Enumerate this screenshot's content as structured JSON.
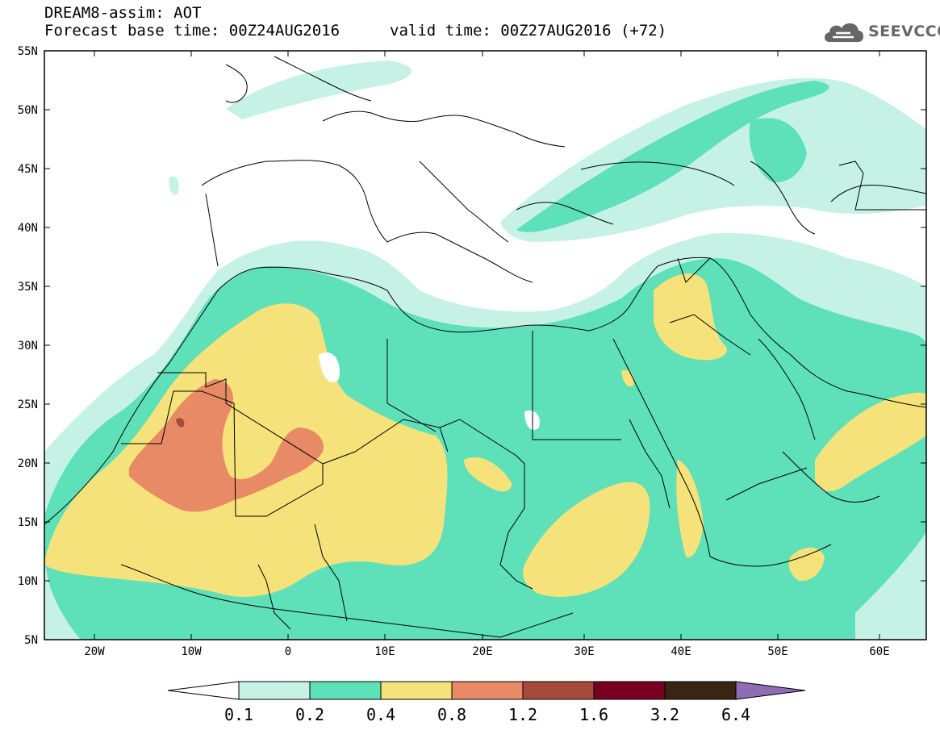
{
  "title_line1": "DREAM8-assim: AOT",
  "title_line2": "Forecast base time: 00Z24AUG2016",
  "valid_time": "valid time: 00Z27AUG2016 (+72)",
  "logo_text": "SEEVCCC",
  "logo_icon": "cloud-icon",
  "lat_labels": [
    "55N",
    "50N",
    "45N",
    "40N",
    "35N",
    "30N",
    "25N",
    "20N",
    "15N",
    "10N",
    "5N"
  ],
  "lon_labels": [
    "20W",
    "10W",
    "0",
    "10E",
    "20E",
    "30E",
    "40E",
    "50E",
    "60E"
  ],
  "colorbar": {
    "labels": [
      "0.1",
      "0.2",
      "0.4",
      "0.8",
      "1.2",
      "1.6",
      "3.2",
      "6.4"
    ],
    "colors": [
      "#ffffff",
      "#c6f2e6",
      "#5ee0b8",
      "#f5e27a",
      "#e88a66",
      "#a64a3c",
      "#780020",
      "#3a2412",
      "#8f6db5"
    ]
  },
  "colors": {
    "level1": "#c6f2e6",
    "level2": "#5ee0b8",
    "level3": "#f5e27a",
    "level4": "#e88a66",
    "level5": "#a64a3c"
  }
}
